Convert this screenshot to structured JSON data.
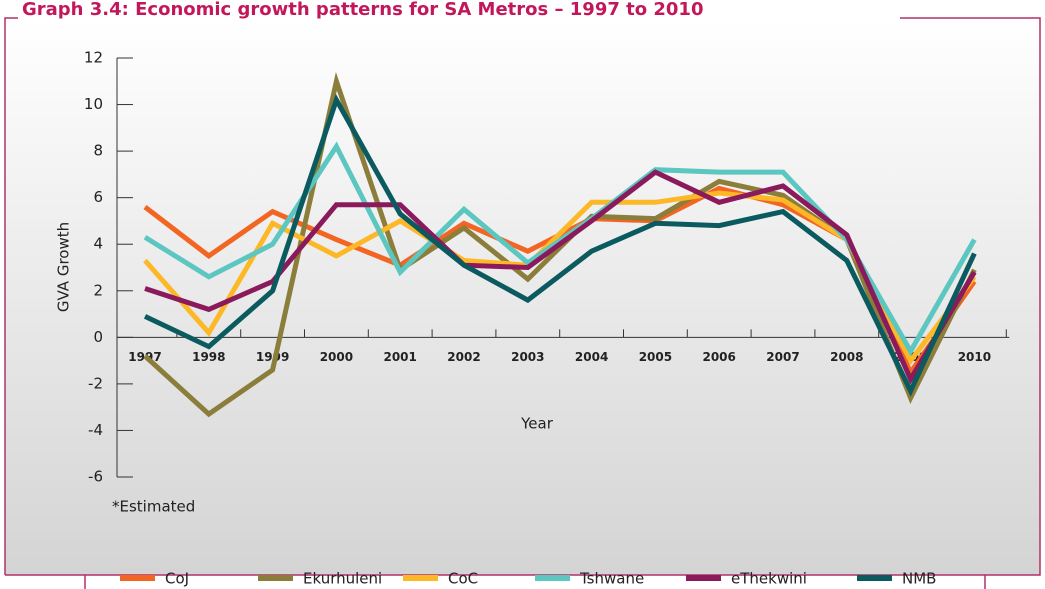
{
  "chart_data": {
    "type": "line",
    "title": "Graph 3.4: Economic growth patterns for SA Metros – 1997 to 2010",
    "y_label": "GVA Growth",
    "x_label": "Year",
    "note": "*Estimated",
    "categories": [
      "1997",
      "1998",
      "1999",
      "2000",
      "2001",
      "2002",
      "2003",
      "2004",
      "2005",
      "2006",
      "2007",
      "2008",
      "2009",
      "2010"
    ],
    "series": [
      {
        "name": "CoJ",
        "color": "#f26522",
        "values": [
          5.6,
          3.5,
          5.4,
          4.2,
          3.1,
          4.9,
          3.7,
          5.1,
          5.0,
          6.4,
          5.7,
          4.2,
          -1.5,
          2.4
        ]
      },
      {
        "name": "Ekurhuleni",
        "color": "#8b7d3a",
        "values": [
          -0.8,
          -3.3,
          -1.4,
          11.0,
          2.9,
          4.7,
          2.5,
          5.2,
          5.1,
          6.7,
          6.1,
          4.2,
          -2.6,
          2.9
        ]
      },
      {
        "name": "CoC",
        "color": "#fdb827",
        "values": [
          3.3,
          0.2,
          4.9,
          3.5,
          5.0,
          3.3,
          3.1,
          5.8,
          5.8,
          6.2,
          5.9,
          4.2,
          -1.0,
          2.6
        ]
      },
      {
        "name": "Tshwane",
        "color": "#5cc6c0",
        "values": [
          4.3,
          2.6,
          4.0,
          8.2,
          2.8,
          5.5,
          3.2,
          5.1,
          7.2,
          7.1,
          7.1,
          4.2,
          -0.6,
          4.2
        ]
      },
      {
        "name": "eThekwini",
        "color": "#8b1a5c",
        "values": [
          2.1,
          1.2,
          2.4,
          5.7,
          5.7,
          3.1,
          3.0,
          5.0,
          7.1,
          5.8,
          6.5,
          4.4,
          -1.8,
          2.8
        ]
      },
      {
        "name": "NMB",
        "color": "#0b5a5f",
        "values": [
          0.9,
          -0.4,
          2.0,
          10.2,
          5.3,
          3.1,
          1.6,
          3.7,
          4.9,
          4.8,
          5.4,
          3.3,
          -2.3,
          3.6
        ]
      }
    ],
    "ylim": [
      -6,
      12
    ],
    "yticks": [
      -6,
      -4,
      -2,
      0,
      2,
      4,
      6,
      8,
      10,
      12
    ],
    "legend": "bottom"
  }
}
